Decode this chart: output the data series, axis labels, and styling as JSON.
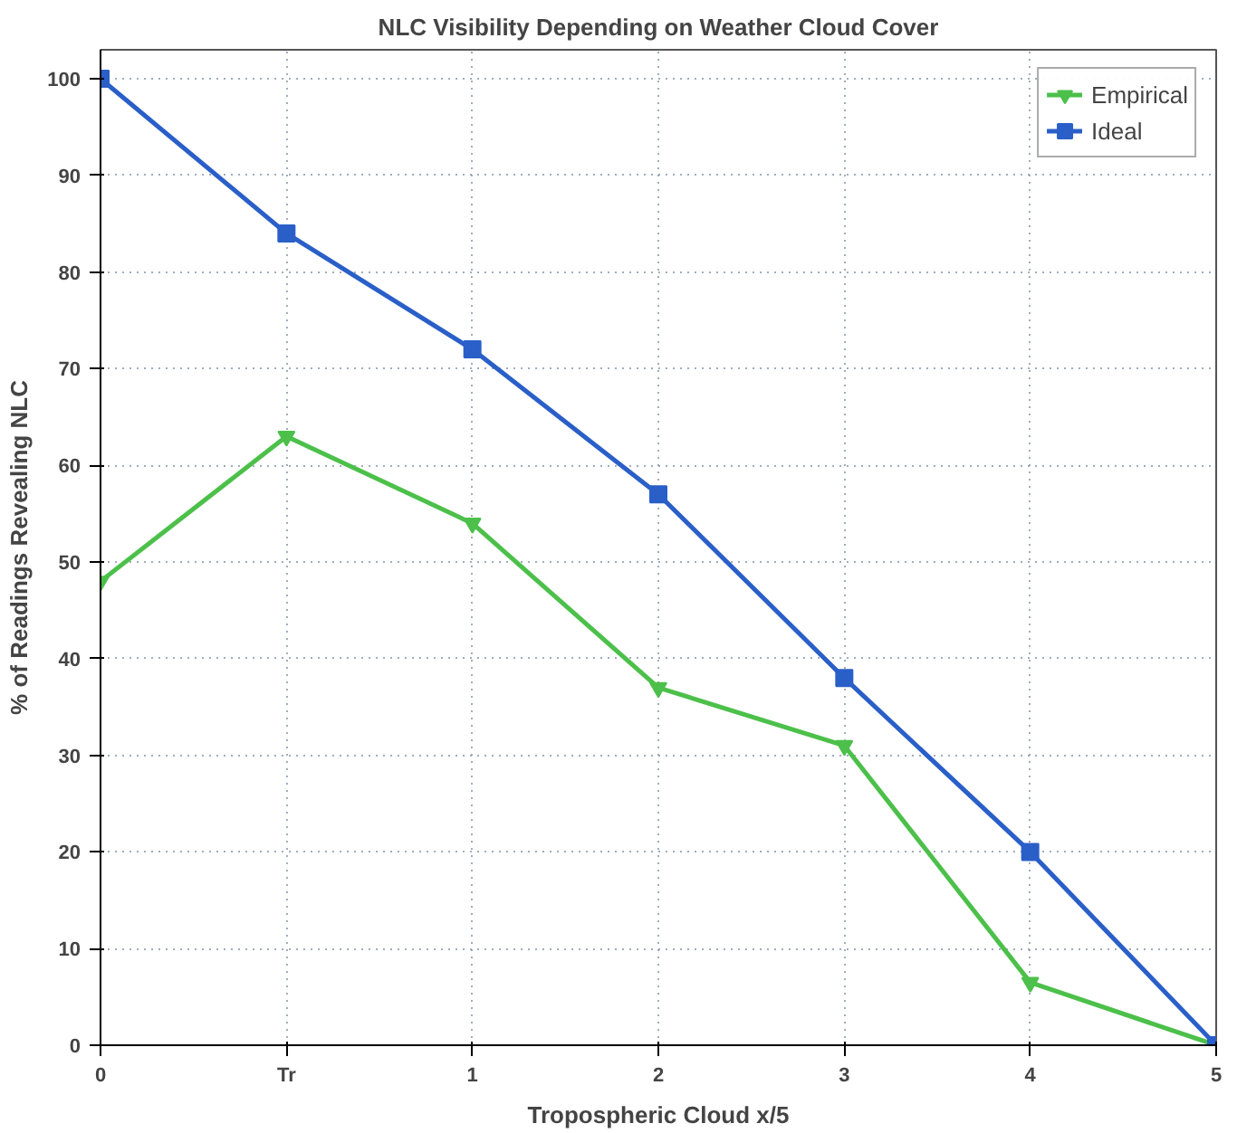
{
  "chart_data": {
    "type": "line",
    "title": "NLC Visibility Depending on Weather Cloud Cover",
    "xlabel": "Tropospheric Cloud x/5",
    "ylabel": "% of Readings Revealing NLC",
    "categories": [
      "0",
      "Tr",
      "1",
      "2",
      "3",
      "4",
      "5"
    ],
    "series": [
      {
        "name": "Empirical",
        "color": "#4cc04a",
        "marker": "triangle_down",
        "values": [
          48,
          63,
          54,
          37,
          31,
          6.5,
          0
        ]
      },
      {
        "name": "Ideal",
        "color": "#2a5fc8",
        "marker": "square",
        "values": [
          100,
          84,
          72,
          57,
          38,
          20,
          0
        ]
      }
    ],
    "ylim": [
      0,
      103
    ],
    "yticks": [
      0,
      10,
      20,
      30,
      40,
      50,
      60,
      70,
      80,
      90,
      100
    ],
    "grid": true,
    "legend": "top right",
    "line_style": "solid"
  }
}
